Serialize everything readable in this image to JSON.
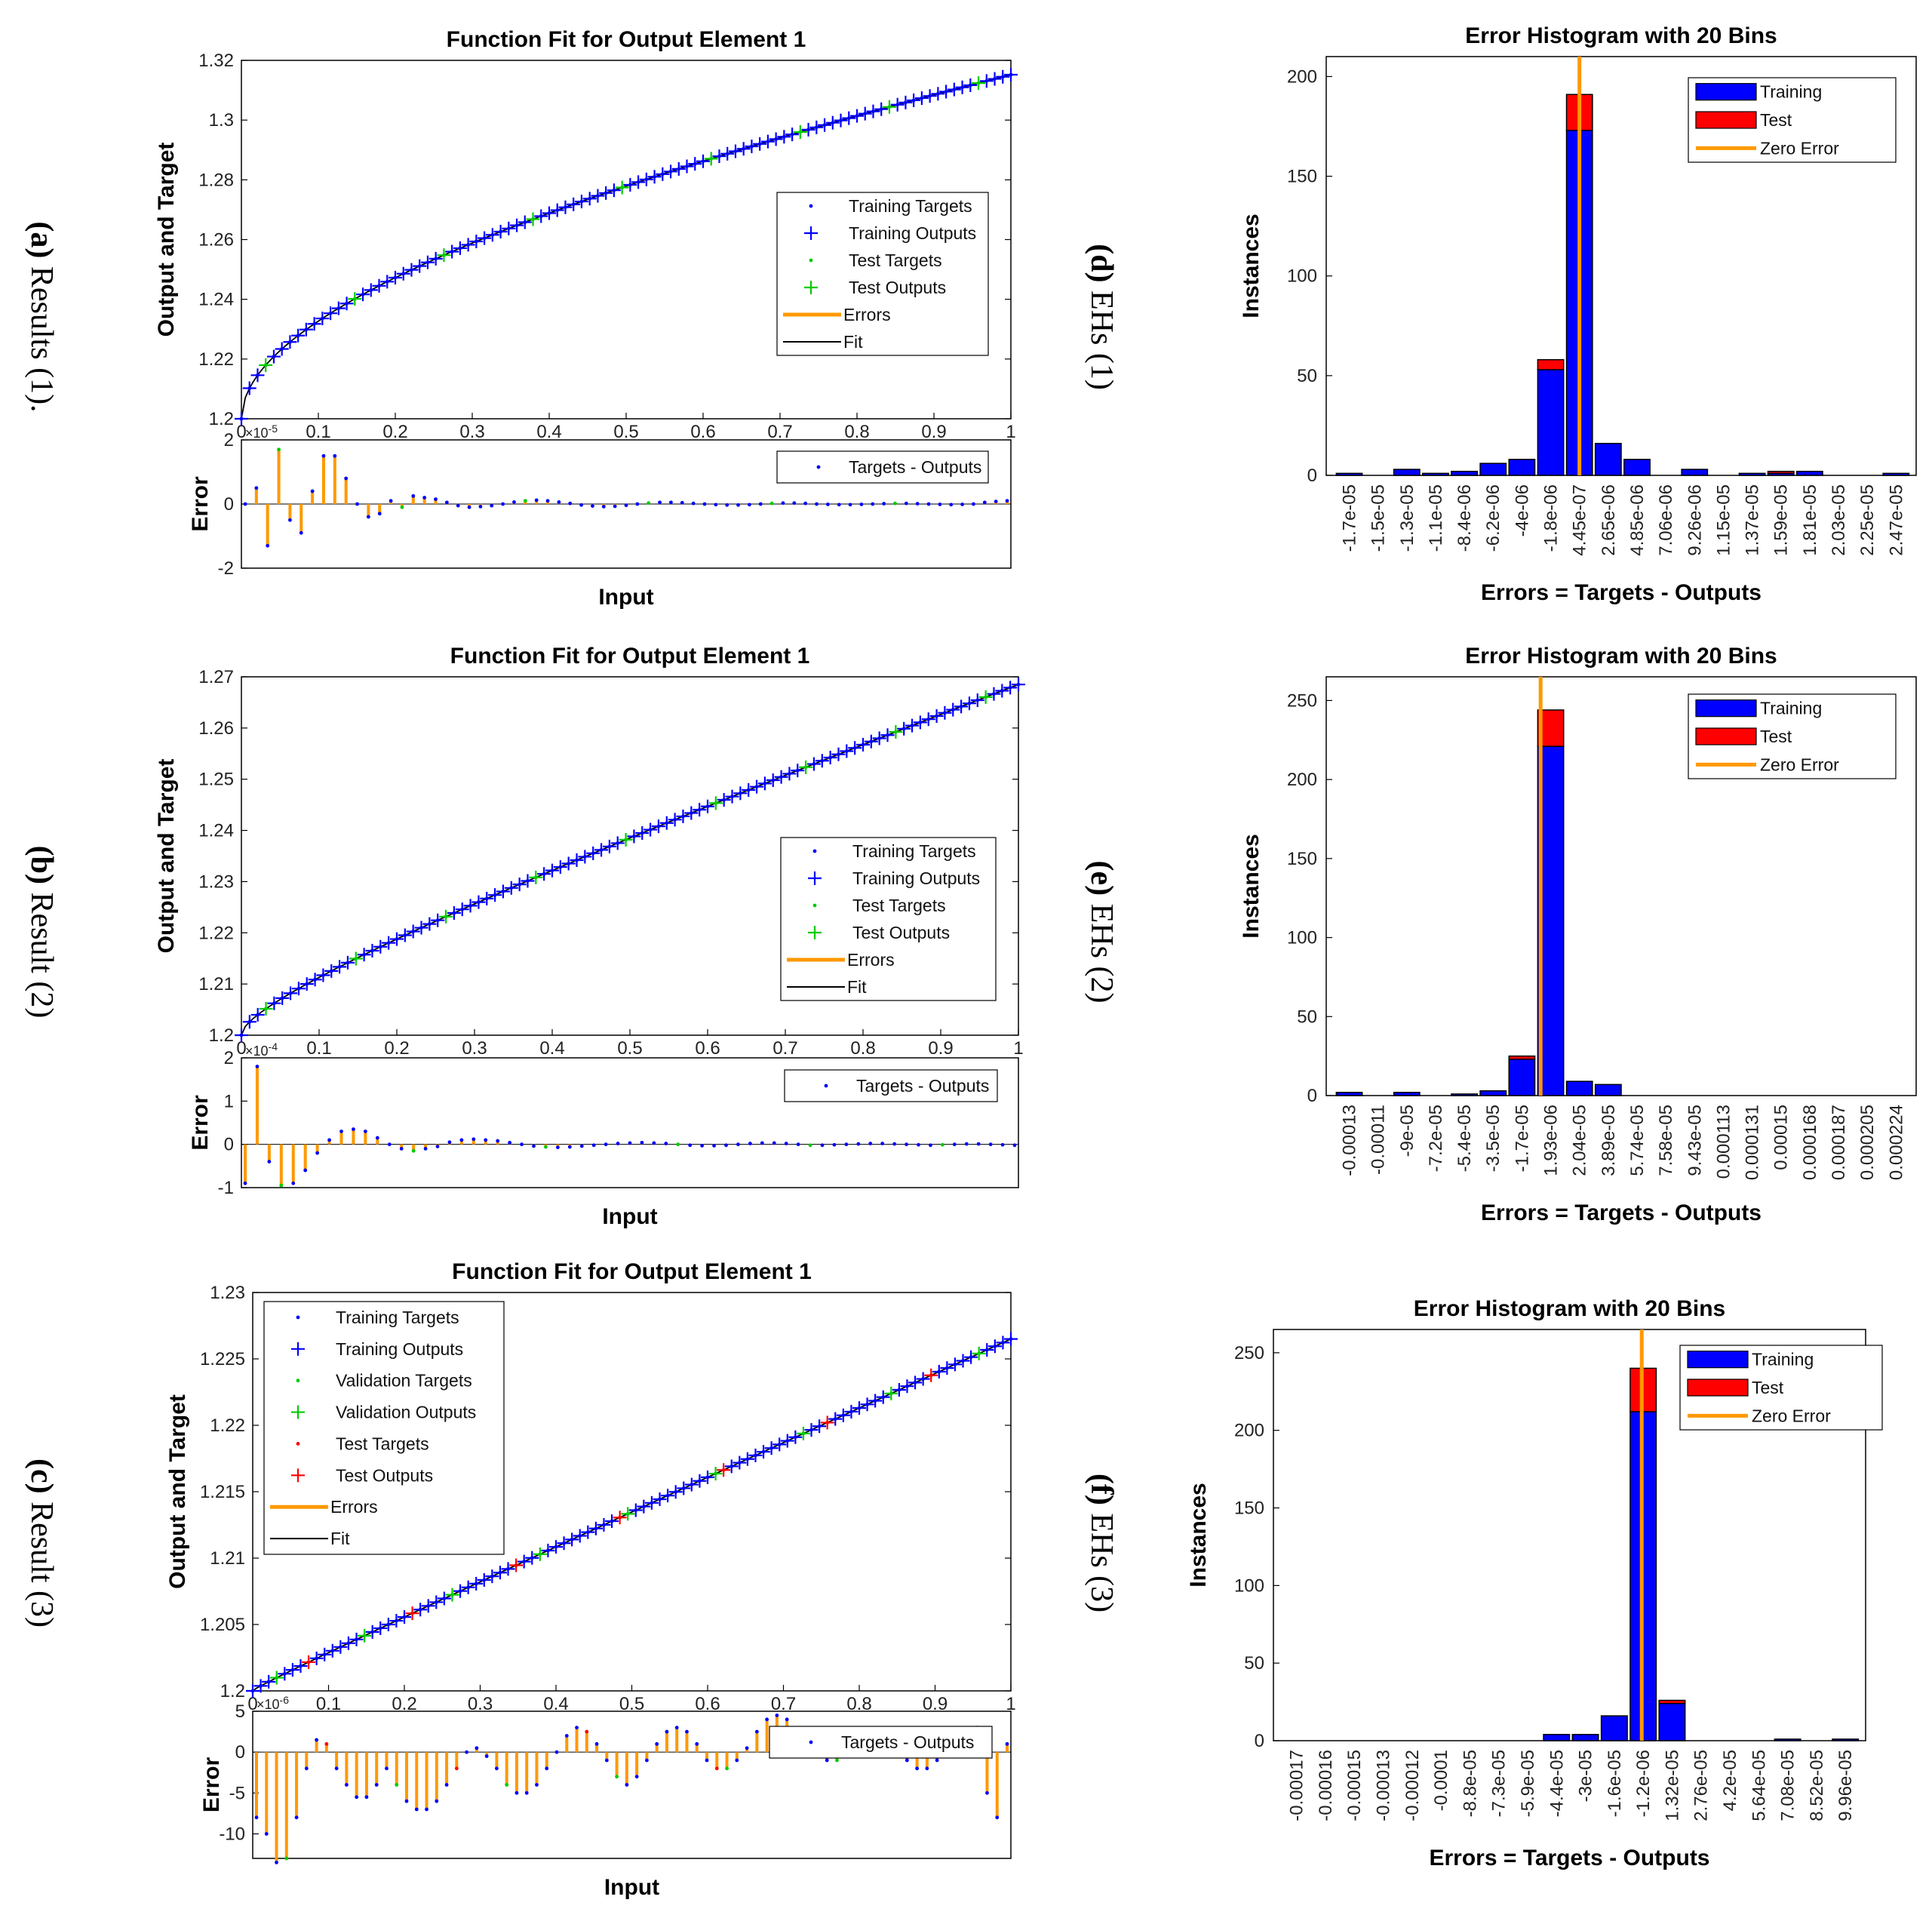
{
  "captions": [
    {
      "letter": "(a)",
      "text": " Results (1)."
    },
    {
      "letter": "(b)",
      "text": " Result (2)"
    },
    {
      "letter": "(c)",
      "text": " Result (3)"
    },
    {
      "letter": "(d)",
      "text": " EHs (1)"
    },
    {
      "letter": "(e)",
      "text": " EHs (2)"
    },
    {
      "letter": "(f)",
      "text": " EHs (3)"
    }
  ],
  "colors": {
    "training": "#0000ff",
    "test": "#ff0000",
    "validation": "#00cc00",
    "errors": "#ff9900",
    "fit": "#000000",
    "grid_bg": "#ffffff"
  },
  "chart_data": [
    {
      "type": "line",
      "title": "Function Fit for Output Element 1",
      "xlabel": "Input",
      "ylabel": "Output and Target",
      "xlim": [
        0,
        1
      ],
      "ylim": [
        1.2,
        1.32
      ],
      "xticks": [
        "0",
        "0.1",
        "0.2",
        "0.3",
        "0.4",
        "0.5",
        "0.6",
        "0.7",
        "0.8",
        "0.9",
        "1"
      ],
      "yticks": [
        "1.2",
        "1.22",
        "1.24",
        "1.26",
        "1.28",
        "1.3",
        "1.32"
      ],
      "curve": {
        "y0": 1.2,
        "y1": 1.3152,
        "shape": "sqrt"
      },
      "legend": [
        "Training Targets",
        "Training Outputs",
        "Test Targets",
        "Test Outputs",
        "Errors",
        "Fit"
      ],
      "has_validation": false,
      "error_panel": {
        "ylabel": "Error",
        "exponent": "×10",
        "exponent_power": "-5",
        "ylim": [
          -2,
          2
        ],
        "yticks": [
          "2",
          "0",
          "-2"
        ],
        "legend": "Targets - Outputs",
        "values": [
          0.0,
          0.5,
          -1.3,
          1.7,
          -0.5,
          -0.9,
          0.4,
          1.5,
          1.5,
          0.8,
          0.0,
          -0.4,
          -0.3,
          0.1,
          -0.1,
          0.25,
          0.2,
          0.15,
          0.05,
          -0.05,
          -0.1,
          -0.08,
          -0.05,
          0.0,
          0.06,
          0.1,
          0.12,
          0.1,
          0.06,
          0.02,
          -0.03,
          -0.06,
          -0.08,
          -0.07,
          -0.04,
          0.0,
          0.03,
          0.05,
          0.05,
          0.04,
          0.02,
          0.0,
          -0.02,
          -0.03,
          -0.03,
          -0.02,
          0.0,
          0.02,
          0.03,
          0.03,
          0.02,
          0.0,
          -0.01,
          -0.02,
          -0.02,
          -0.01,
          0.0,
          0.01,
          0.02,
          0.02,
          0.01,
          0.0,
          -0.01,
          -0.02,
          -0.01,
          0.0,
          0.05,
          0.08,
          0.1
        ]
      }
    },
    {
      "type": "line",
      "title": "Function Fit for Output Element 1",
      "xlabel": "Input",
      "ylabel": "Output and Target",
      "xlim": [
        0,
        1
      ],
      "ylim": [
        1.2,
        1.27
      ],
      "xticks": [
        "0",
        "0.1",
        "0.2",
        "0.3",
        "0.4",
        "0.5",
        "0.6",
        "0.7",
        "0.8",
        "0.9",
        "1"
      ],
      "yticks": [
        "1.2",
        "1.21",
        "1.22",
        "1.23",
        "1.24",
        "1.25",
        "1.26",
        "1.27"
      ],
      "curve": {
        "y0": 1.2,
        "y1": 1.2685,
        "shape": "mixed"
      },
      "legend": [
        "Training Targets",
        "Training Outputs",
        "Test Targets",
        "Test Outputs",
        "Errors",
        "Fit"
      ],
      "has_validation": false,
      "error_panel": {
        "ylabel": "Error",
        "exponent": "×10",
        "exponent_power": "-4",
        "ylim": [
          -1,
          2
        ],
        "yticks": [
          "2",
          "1",
          "0",
          "-1"
        ],
        "legend": "Targets - Outputs",
        "values": [
          -0.9,
          1.8,
          -0.4,
          -0.95,
          -0.9,
          -0.6,
          -0.2,
          0.1,
          0.3,
          0.35,
          0.3,
          0.15,
          0.0,
          -0.1,
          -0.15,
          -0.1,
          -0.05,
          0.05,
          0.1,
          0.12,
          0.1,
          0.08,
          0.04,
          0.0,
          -0.04,
          -0.06,
          -0.07,
          -0.06,
          -0.04,
          -0.02,
          0.0,
          0.02,
          0.03,
          0.04,
          0.03,
          0.02,
          0.0,
          -0.02,
          -0.03,
          -0.03,
          -0.02,
          0.0,
          0.02,
          0.03,
          0.03,
          0.02,
          0.0,
          -0.02,
          -0.02,
          -0.01,
          0.0,
          0.01,
          0.02,
          0.02,
          0.01,
          0.0,
          -0.01,
          -0.02,
          -0.01,
          0.0,
          0.01,
          0.01,
          0.0,
          -0.01,
          -0.02
        ]
      }
    },
    {
      "type": "line",
      "title": "Function Fit for Output Element 1",
      "xlabel": "Input",
      "ylabel": "Output and Target",
      "xlim": [
        0,
        1
      ],
      "ylim": [
        1.2,
        1.23
      ],
      "xticks": [
        "0",
        "0.1",
        "0.2",
        "0.3",
        "0.4",
        "0.5",
        "0.6",
        "0.7",
        "0.8",
        "0.9",
        "1"
      ],
      "yticks": [
        "1.2",
        "1.205",
        "1.21",
        "1.215",
        "1.22",
        "1.225",
        "1.23"
      ],
      "curve": {
        "y0": 1.2,
        "y1": 1.2265,
        "shape": "linear"
      },
      "legend": [
        "Training Targets",
        "Training Outputs",
        "Validation Targets",
        "Validation Outputs",
        "Test Targets",
        "Test Outputs",
        "Errors",
        "Fit"
      ],
      "has_validation": true,
      "error_panel": {
        "ylabel": "Error",
        "exponent": "×10",
        "exponent_power": "-6",
        "ylim": [
          -13,
          5
        ],
        "yticks": [
          "5",
          "0",
          "-5",
          "-10"
        ],
        "legend": "Targets - Outputs",
        "values": [
          -8,
          -10,
          -13.5,
          -13,
          -8,
          -2,
          1.5,
          1,
          -2,
          -4,
          -5.5,
          -5.5,
          -4,
          -2,
          -4,
          -6,
          -7,
          -7,
          -6,
          -4,
          -2,
          0,
          0.5,
          -0.5,
          -2,
          -4,
          -5,
          -5,
          -4,
          -2,
          0,
          2,
          3,
          2.5,
          1,
          -1,
          -3,
          -4,
          -3,
          -1,
          1,
          2.5,
          3,
          2.5,
          1,
          -1,
          -2,
          -2,
          -1,
          0.5,
          2.5,
          4,
          4.5,
          4,
          2.5,
          1,
          0,
          -1,
          -1,
          -0.5,
          0,
          0.5,
          1,
          0.5,
          -0.5,
          -1,
          -2,
          -2,
          -1,
          0.5,
          2,
          2.5,
          3,
          -5,
          -8,
          1
        ]
      }
    },
    {
      "type": "bar",
      "title": "Error Histogram with 20 Bins",
      "xlabel": "Errors = Targets - Outputs",
      "ylabel": "Instances",
      "ylim": [
        0,
        210
      ],
      "yticks": [
        "0",
        "50",
        "100",
        "150",
        "200"
      ],
      "categories": [
        "-1.7e-05",
        "-1.5e-05",
        "-1.3e-05",
        "-1.1e-05",
        "-8.4e-06",
        "-6.2e-06",
        "-4e-06",
        "-1.8e-06",
        "4.45e-07",
        "2.65e-06",
        "4.85e-06",
        "7.06e-06",
        "9.26e-06",
        "1.15e-05",
        "1.37e-05",
        "1.59e-05",
        "1.81e-05",
        "2.03e-05",
        "2.25e-05",
        "2.47e-05"
      ],
      "series": [
        {
          "name": "Training",
          "values": [
            1,
            0,
            3,
            1,
            2,
            6,
            8,
            53,
            173,
            16,
            8,
            0,
            3,
            0,
            1,
            1,
            2,
            0,
            0,
            1
          ]
        },
        {
          "name": "Test",
          "values": [
            0,
            0,
            0,
            0,
            0,
            0,
            0,
            5,
            18,
            0,
            0,
            0,
            0,
            0,
            0,
            1,
            0,
            0,
            0,
            0
          ]
        }
      ],
      "zero_error_bin": 8.45,
      "legend": [
        "Training",
        "Test",
        "Zero Error"
      ]
    },
    {
      "type": "bar",
      "title": "Error Histogram with 20 Bins",
      "xlabel": "Errors = Targets - Outputs",
      "ylabel": "Instances",
      "ylim": [
        0,
        265
      ],
      "yticks": [
        "0",
        "50",
        "100",
        "150",
        "200",
        "250"
      ],
      "categories": [
        "-0.00013",
        "-0.00011",
        "-9e-05",
        "-7.2e-05",
        "-5.4e-05",
        "-3.5e-05",
        "-1.7e-05",
        "1.93e-06",
        "2.04e-05",
        "3.89e-05",
        "5.74e-05",
        "7.58e-05",
        "9.43e-05",
        "0.000113",
        "0.000131",
        "0.00015",
        "0.000168",
        "0.000187",
        "0.000205",
        "0.000224"
      ],
      "series": [
        {
          "name": "Training",
          "values": [
            2,
            0,
            2,
            0,
            1,
            3,
            23,
            221,
            9,
            7,
            0,
            0,
            0,
            0,
            0,
            0,
            0,
            0,
            0,
            0
          ]
        },
        {
          "name": "Test",
          "values": [
            0,
            0,
            0,
            0,
            0,
            0,
            2,
            23,
            0,
            0,
            0,
            0,
            0,
            0,
            0,
            0,
            0,
            0,
            0,
            0
          ]
        }
      ],
      "zero_error_bin": 7.1,
      "legend": [
        "Training",
        "Test",
        "Zero Error"
      ]
    },
    {
      "type": "bar",
      "title": "Error Histogram with 20 Bins",
      "xlabel": "Errors = Targets - Outputs",
      "ylabel": "Instances",
      "ylim": [
        0,
        265
      ],
      "yticks": [
        "0",
        "50",
        "100",
        "150",
        "200",
        "250"
      ],
      "categories": [
        "-0.00017",
        "-0.00016",
        "-0.00015",
        "-0.00013",
        "-0.00012",
        "-0.0001",
        "-8.8e-05",
        "-7.3e-05",
        "-5.9e-05",
        "-4.4e-05",
        "-3e-05",
        "-1.6e-05",
        "-1.2e-06",
        "1.32e-05",
        "2.76e-05",
        "4.2e-05",
        "5.64e-05",
        "7.08e-05",
        "8.52e-05",
        "9.96e-05"
      ],
      "series": [
        {
          "name": "Training",
          "values": [
            0,
            0,
            0,
            0,
            0,
            0,
            0,
            0,
            0,
            4,
            4,
            16,
            212,
            24,
            0,
            0,
            0,
            1,
            0,
            1
          ]
        },
        {
          "name": "Test",
          "values": [
            0,
            0,
            0,
            0,
            0,
            0,
            0,
            0,
            0,
            0,
            0,
            0,
            28,
            2,
            0,
            0,
            0,
            0,
            0,
            0
          ]
        }
      ],
      "zero_error_bin": 12.4,
      "legend": [
        "Training",
        "Test",
        "Zero Error"
      ]
    }
  ]
}
